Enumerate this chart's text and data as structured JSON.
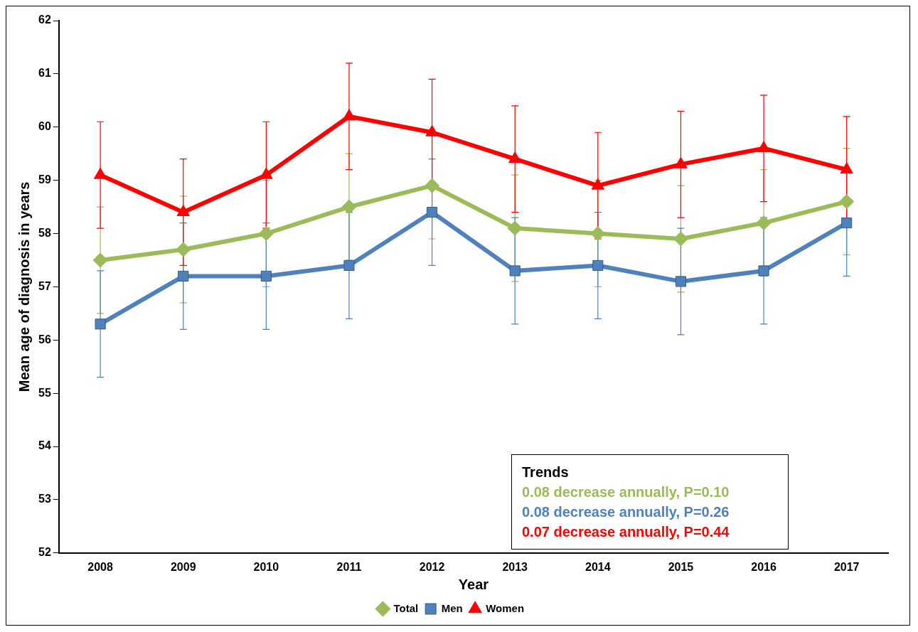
{
  "chart_data": {
    "type": "line",
    "xlabel": "Year",
    "ylabel": "Mean age of diagnosis in years",
    "categories": [
      "2008",
      "2009",
      "2010",
      "2011",
      "2012",
      "2013",
      "2014",
      "2015",
      "2016",
      "2017"
    ],
    "series": [
      {
        "name": "Total",
        "color": "#9bbb59",
        "marker": "diamond",
        "values": [
          57.5,
          57.7,
          58.0,
          58.5,
          58.9,
          58.1,
          58.0,
          57.9,
          58.2,
          58.6
        ],
        "errors": [
          1,
          1,
          1,
          1,
          1,
          1,
          1,
          1,
          1,
          1
        ]
      },
      {
        "name": "Men",
        "color": "#4f81bd",
        "marker": "square",
        "values": [
          56.3,
          57.2,
          57.2,
          57.4,
          58.4,
          57.3,
          57.4,
          57.1,
          57.3,
          58.2
        ],
        "errors": [
          1,
          1,
          1,
          1,
          1,
          1,
          1,
          1,
          1,
          1
        ]
      },
      {
        "name": "Women",
        "color": "#ff0000",
        "marker": "triangle",
        "values": [
          59.1,
          58.4,
          59.1,
          60.2,
          59.9,
          59.4,
          58.9,
          59.3,
          59.6,
          59.2
        ],
        "errors": [
          1,
          1,
          1,
          1,
          1,
          1,
          1,
          1,
          1,
          1
        ]
      }
    ],
    "ylim": [
      52,
      62
    ],
    "yticks": [
      52,
      53,
      54,
      55,
      56,
      57,
      58,
      59,
      60,
      61,
      62
    ],
    "grid": false,
    "legend": "bottom",
    "annotations": [
      "Trends",
      "0.08 decrease annually, P=0.10",
      "0.08 decrease annually, P=0.26",
      "0.07 decrease annually, P=0.44"
    ]
  }
}
